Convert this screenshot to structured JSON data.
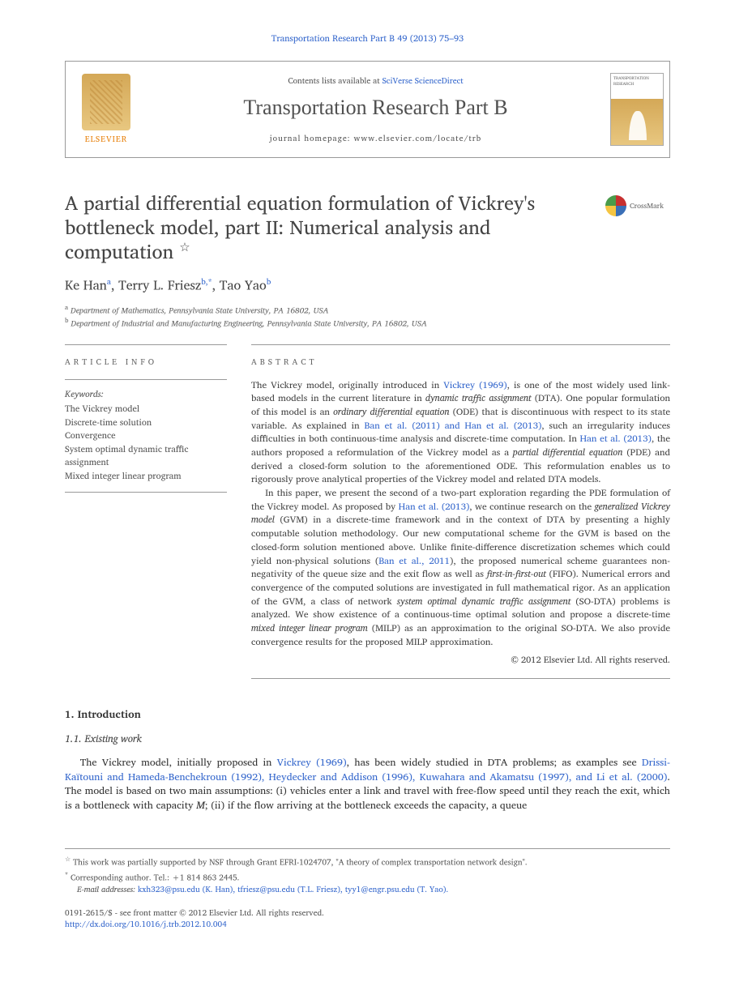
{
  "running_header": "Transportation Research Part B 49 (2013) 75–93",
  "header": {
    "publisher": "ELSEVIER",
    "contents_prefix": "Contents lists available at ",
    "contents_link": "SciVerse ScienceDirect",
    "journal_name": "Transportation Research Part B",
    "homepage_label": "journal homepage: ",
    "homepage_url": "www.elsevier.com/locate/trb",
    "cover_label_1": "TRANSPORTATION",
    "cover_label_2": "RESEARCH"
  },
  "crossmark": "CrossMark",
  "title": "A partial differential equation formulation of Vickrey's bottleneck model, part II: Numerical analysis and computation",
  "title_footnote_marker": "☆",
  "authors_html": "Ke Han <sup>a</sup>, Terry L. Friesz <sup>b,*</sup>, Tao Yao <sup>b</sup>",
  "authors": [
    {
      "name": "Ke Han",
      "aff": "a"
    },
    {
      "name": "Terry L. Friesz",
      "aff": "b,*"
    },
    {
      "name": "Tao Yao",
      "aff": "b"
    }
  ],
  "affiliations": [
    {
      "marker": "a",
      "text": "Department of Mathematics, Pennsylvania State University, PA 16802, USA"
    },
    {
      "marker": "b",
      "text": "Department of Industrial and Manufacturing Engineering, Pennsylvania State University, PA 16802, USA"
    }
  ],
  "article_info_heading": "ARTICLE INFO",
  "keywords_label": "Keywords:",
  "keywords": [
    "The Vickrey model",
    "Discrete-time solution",
    "Convergence",
    "System optimal dynamic traffic assignment",
    "Mixed integer linear program"
  ],
  "abstract_heading": "ABSTRACT",
  "abstract_p1": "The Vickrey model, originally introduced in <span class=\"link\">Vickrey (1969)</span>, is one of the most widely used link-based models in the current literature in <span class=\"em\">dynamic traffic assignment</span> (DTA). One popular formulation of this model is an <span class=\"em\">ordinary differential equation</span> (ODE) that is discontinuous with respect to its state variable. As explained in <span class=\"link\">Ban et al. (2011) and Han et al. (2013)</span>, such an irregularity induces difficulties in both continuous-time analysis and discrete-time computation. In <span class=\"link\">Han et al. (2013)</span>, the authors proposed a reformulation of the Vickrey model as a <span class=\"em\">partial differential equation</span> (PDE) and derived a closed-form solution to the aforementioned ODE. This reformulation enables us to rigorously prove analytical properties of the Vickrey model and related DTA models.",
  "abstract_p2": "In this paper, we present the second of a two-part exploration regarding the PDE formulation of the Vickrey model. As proposed by <span class=\"link\">Han et al. (2013)</span>, we continue research on the <span class=\"em\">generalized Vickrey model</span> (GVM) in a discrete-time framework and in the context of DTA by presenting a highly computable solution methodology. Our new computational scheme for the GVM is based on the closed-form solution mentioned above. Unlike finite-difference discretization schemes which could yield non-physical solutions (<span class=\"link\">Ban et al., 2011</span>), the proposed numerical scheme guarantees non-negativity of the queue size and the exit flow as well as <span class=\"em\">first-in-first-out</span> (FIFO). Numerical errors and convergence of the computed solutions are investigated in full mathematical rigor. As an application of the GVM, a class of network <span class=\"em\">system optimal dynamic traffic assignment</span> (SO-DTA) problems is analyzed. We show existence of a continuous-time optimal solution and propose a discrete-time <span class=\"em\">mixed integer linear program</span> (MILP) as an approximation to the original SO-DTA. We also provide convergence results for the proposed MILP approximation.",
  "copyright": "© 2012 Elsevier Ltd. All rights reserved.",
  "section1_heading": "1. Introduction",
  "section1_1_heading": "1.1. Existing work",
  "body_p1": "The Vickrey model, initially proposed in <span class=\"link\">Vickrey (1969)</span>, has been widely studied in DTA problems; as examples see <span class=\"link\">Drissi-Kaïtouni and Hameda-Benchekroun (1992), Heydecker and Addison (1996), Kuwahara and Akamatsu (1997), and Li et al. (2000)</span>. The model is based on two main assumptions: (i) vehicles enter a link and travel with free-flow speed until they reach the exit, which is a bottleneck with capacity <span class=\"em\">M</span>; (ii) if the flow arriving at the bottleneck exceeds the capacity, a queue",
  "footnotes": {
    "funding_marker": "☆",
    "funding": "This work was partially supported by NSF through Grant EFRI-1024707, \"A theory of complex transportation network design\".",
    "corr_marker": "*",
    "corr": "Corresponding author. Tel.: +1 814 863 2445.",
    "emails_label": "E-mail addresses:",
    "emails": " kxh323@psu.edu (K. Han), tfriesz@psu.edu (T.L. Friesz), tyy1@engr.psu.edu (T. Yao)."
  },
  "footer": {
    "line1": "0191-2615/$ - see front matter © 2012 Elsevier Ltd. All rights reserved.",
    "doi": "http://dx.doi.org/10.1016/j.trb.2012.10.004"
  },
  "colors": {
    "link": "#3366cc",
    "text": "#333333",
    "muted": "#666666",
    "rule": "#999999",
    "elsevier_orange": "#e8810c"
  }
}
